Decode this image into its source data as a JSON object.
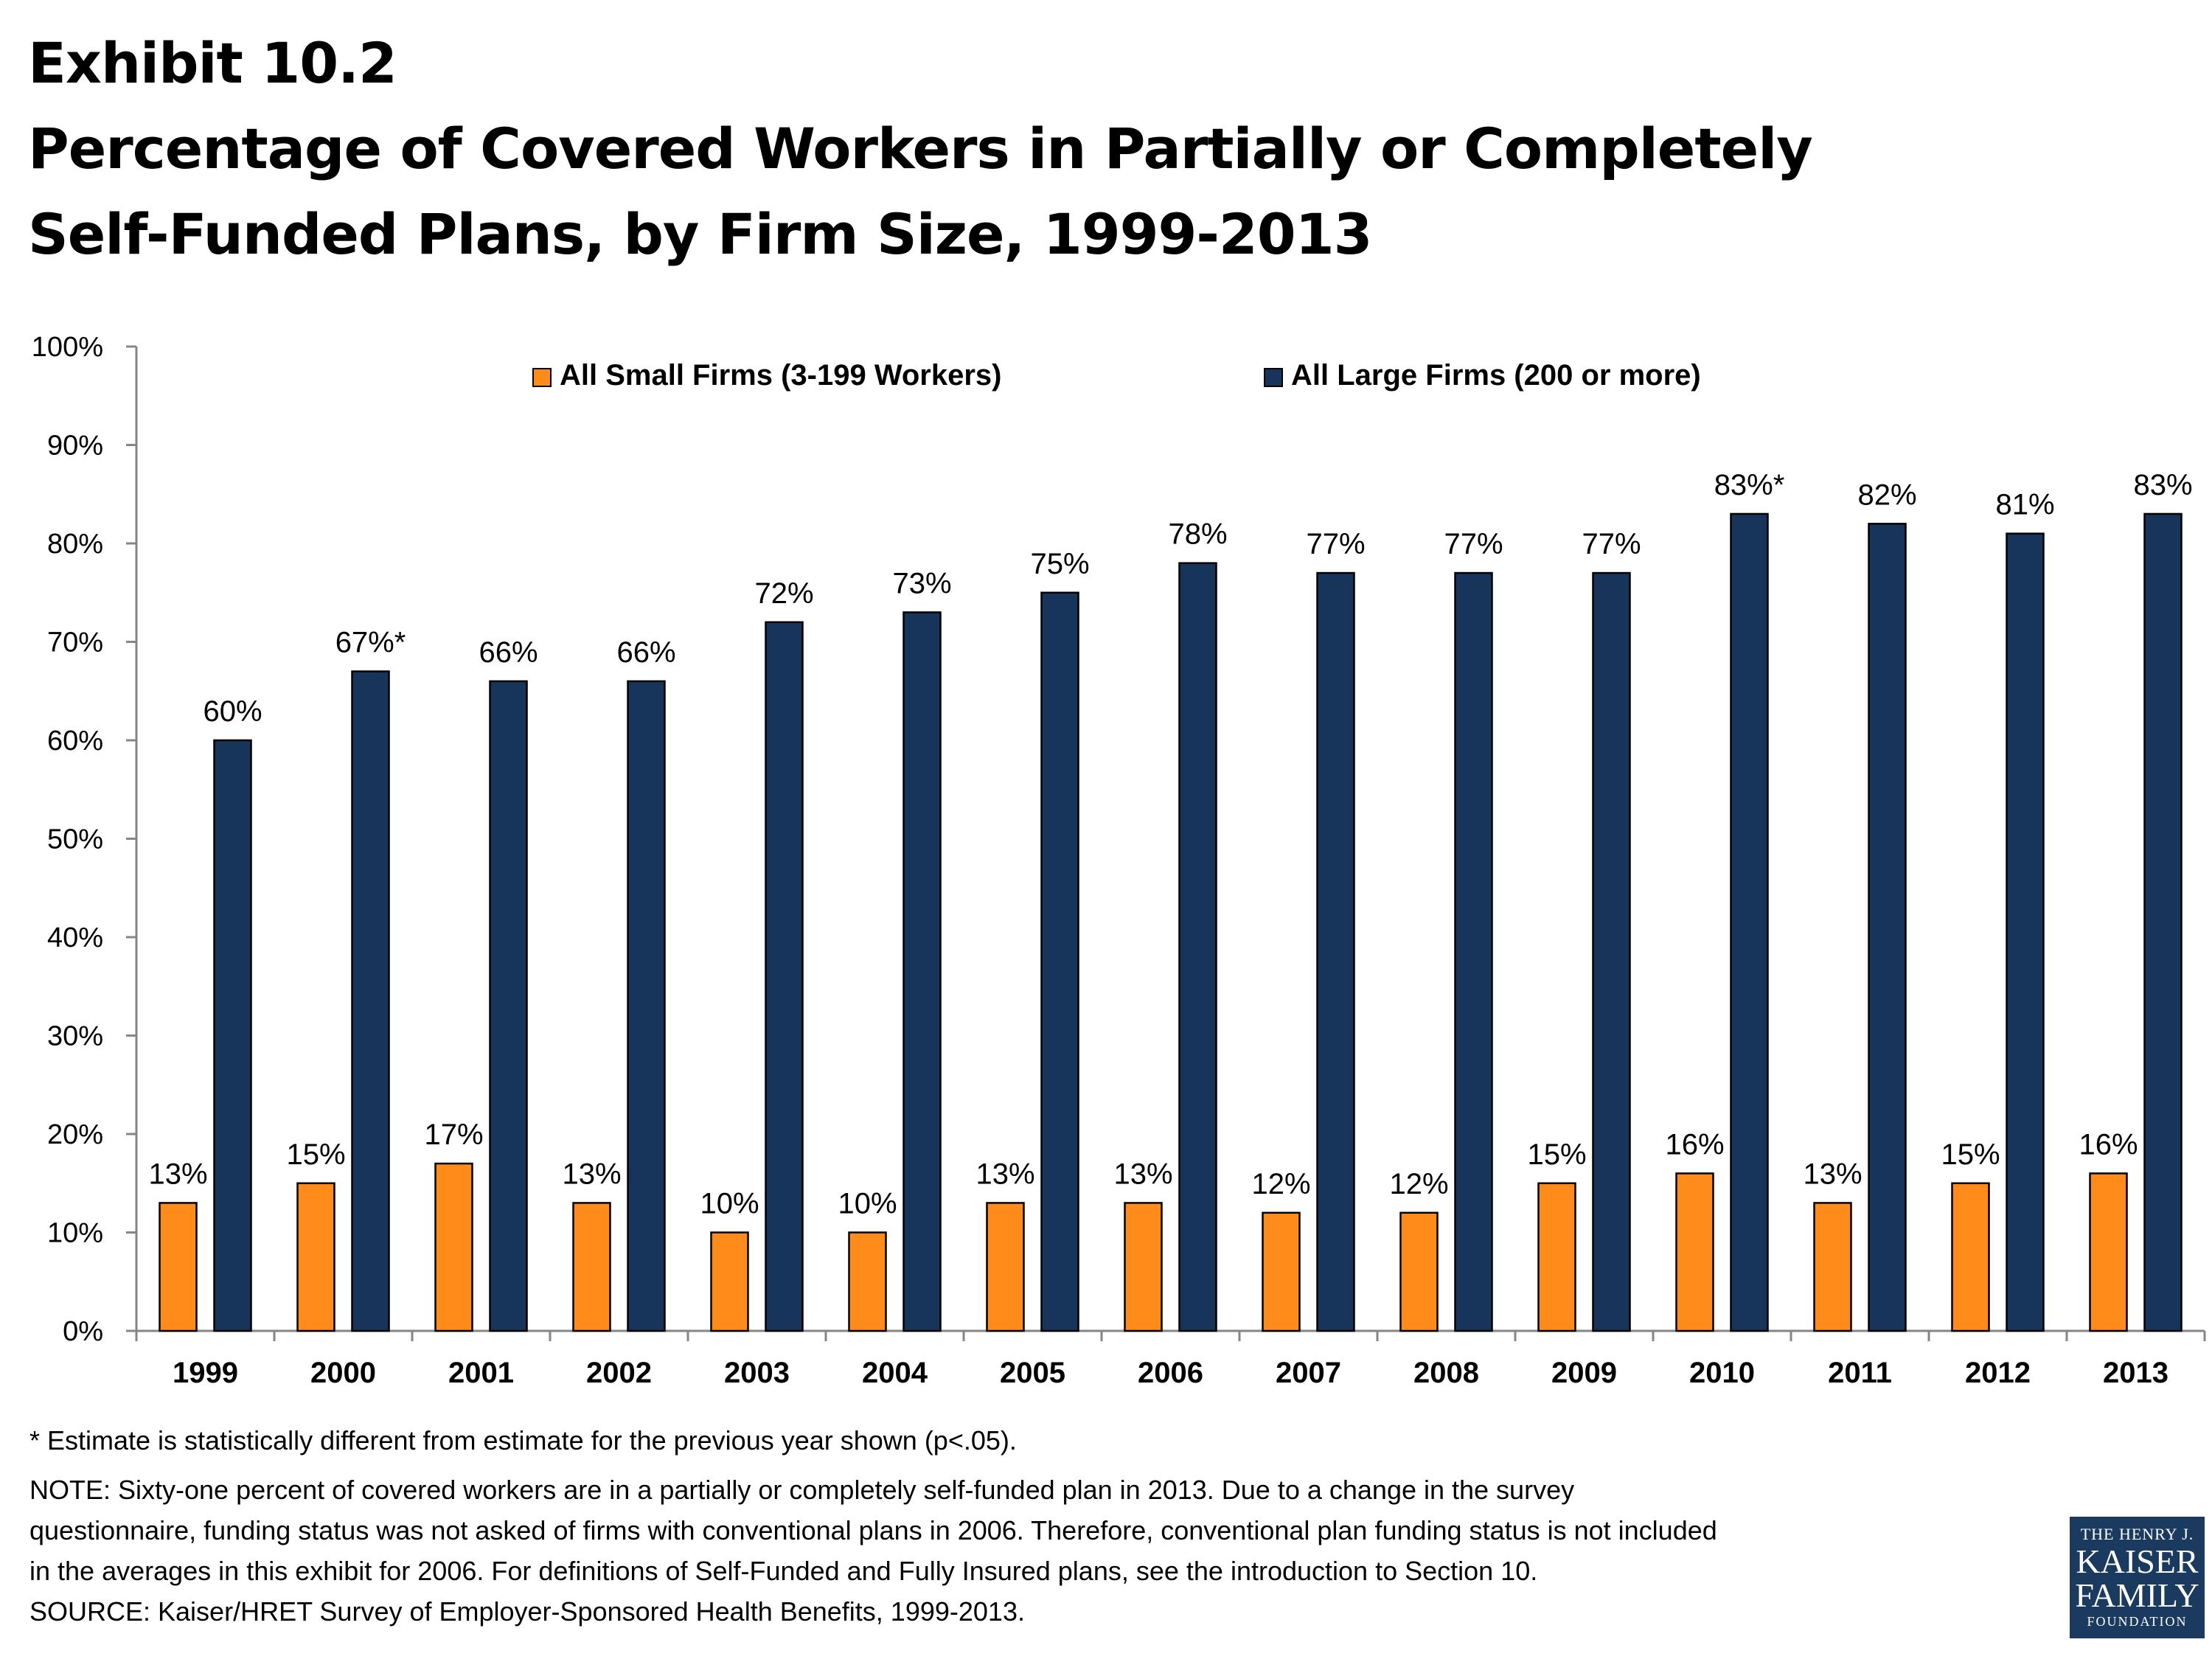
{
  "title": {
    "line1": "Exhibit 10.2",
    "line2": "Percentage of Covered Workers in Partially or Completely",
    "line3": "Self-Funded Plans, by Firm Size, 1999-2013"
  },
  "chart_data": {
    "type": "bar",
    "categories": [
      "1999",
      "2000",
      "2001",
      "2002",
      "2003",
      "2004",
      "2005",
      "2006",
      "2007",
      "2008",
      "2009",
      "2010",
      "2011",
      "2012",
      "2013"
    ],
    "series": [
      {
        "name": "All Small Firms (3-199 Workers)",
        "color": "#FF8C1A",
        "values": [
          13,
          15,
          17,
          13,
          10,
          10,
          13,
          13,
          12,
          12,
          15,
          16,
          13,
          15,
          16
        ],
        "labels": [
          "13%",
          "15%",
          "17%",
          "13%",
          "10%",
          "10%",
          "13%",
          "13%",
          "12%",
          "12%",
          "15%",
          "16%",
          "13%",
          "15%",
          "16%"
        ]
      },
      {
        "name": "All Large Firms (200 or more)",
        "color": "#17355A",
        "values": [
          60,
          67,
          66,
          66,
          72,
          73,
          75,
          78,
          77,
          77,
          77,
          83,
          82,
          81,
          83
        ],
        "labels": [
          "60%",
          "67%*",
          "66%",
          "66%",
          "72%",
          "73%",
          "75%",
          "78%",
          "77%",
          "77%",
          "77%",
          "83%*",
          "82%",
          "81%",
          "83%"
        ]
      }
    ],
    "yticks": [
      "0%",
      "10%",
      "20%",
      "30%",
      "40%",
      "50%",
      "60%",
      "70%",
      "80%",
      "90%",
      "100%"
    ],
    "ylim": [
      0,
      100
    ],
    "grid": false,
    "legend_position": "top"
  },
  "notes": {
    "significance": "* Estimate is statistically different from estimate for the previous year shown (p<.05).",
    "note_lines": [
      "NOTE: Sixty-one percent of covered workers are in a partially or completely self-funded plan in 2013. Due to a change in the survey",
      "questionnaire, funding status was not asked of firms with conventional plans in 2006.  Therefore, conventional plan funding status is not included",
      "in the averages in this exhibit for 2006.  For definitions of Self-Funded and Fully Insured plans, see the introduction to Section 10."
    ],
    "source": "SOURCE: Kaiser/HRET Survey of Employer-Sponsored Health Benefits, 1999-2013."
  },
  "logo": {
    "line1": "THE HENRY J.",
    "line2": "KAISER",
    "line3": "FAMILY",
    "line4": "FOUNDATION"
  }
}
